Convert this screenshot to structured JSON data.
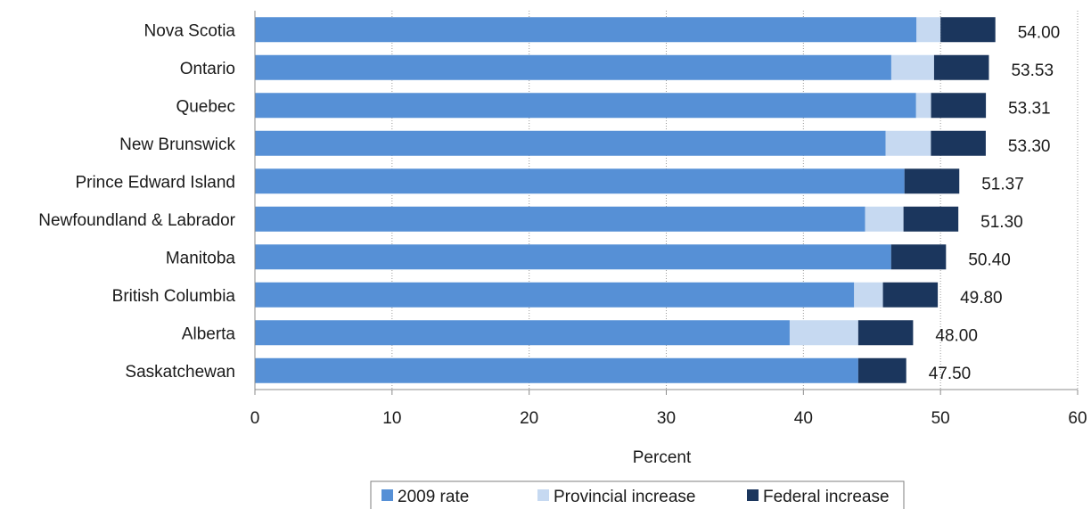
{
  "chart_data": {
    "type": "bar",
    "orientation": "horizontal",
    "stacked": true,
    "categories": [
      "Nova Scotia",
      "Ontario",
      "Quebec",
      "New Brunswick",
      "Prince Edward Island",
      "Newfoundland & Labrador",
      "Manitoba",
      "British Columbia",
      "Alberta",
      "Saskatchewan"
    ],
    "series": [
      {
        "name": "2009 rate",
        "color": "#5690d6",
        "values": [
          48.25,
          46.41,
          48.22,
          46.0,
          47.37,
          44.5,
          46.4,
          43.7,
          39.0,
          44.0
        ]
      },
      {
        "name": "Provincial increase",
        "color": "#c6d9f1",
        "values": [
          1.75,
          3.12,
          1.09,
          3.3,
          0.0,
          2.8,
          0.0,
          2.1,
          5.0,
          0.0
        ]
      },
      {
        "name": "Federal increase",
        "color": "#1b365d",
        "values": [
          4.0,
          4.0,
          4.0,
          4.0,
          4.0,
          4.0,
          4.0,
          4.0,
          4.0,
          3.5
        ]
      }
    ],
    "totals": [
      "54.00",
      "53.53",
      "53.31",
      "53.30",
      "51.37",
      "51.30",
      "50.40",
      "49.80",
      "48.00",
      "47.50"
    ],
    "xlabel": "Percent",
    "xlim": [
      0,
      60
    ],
    "xticks": [
      "0",
      "10",
      "20",
      "30",
      "40",
      "50",
      "60"
    ],
    "grid": "vertical dotted",
    "legend_position": "bottom"
  }
}
